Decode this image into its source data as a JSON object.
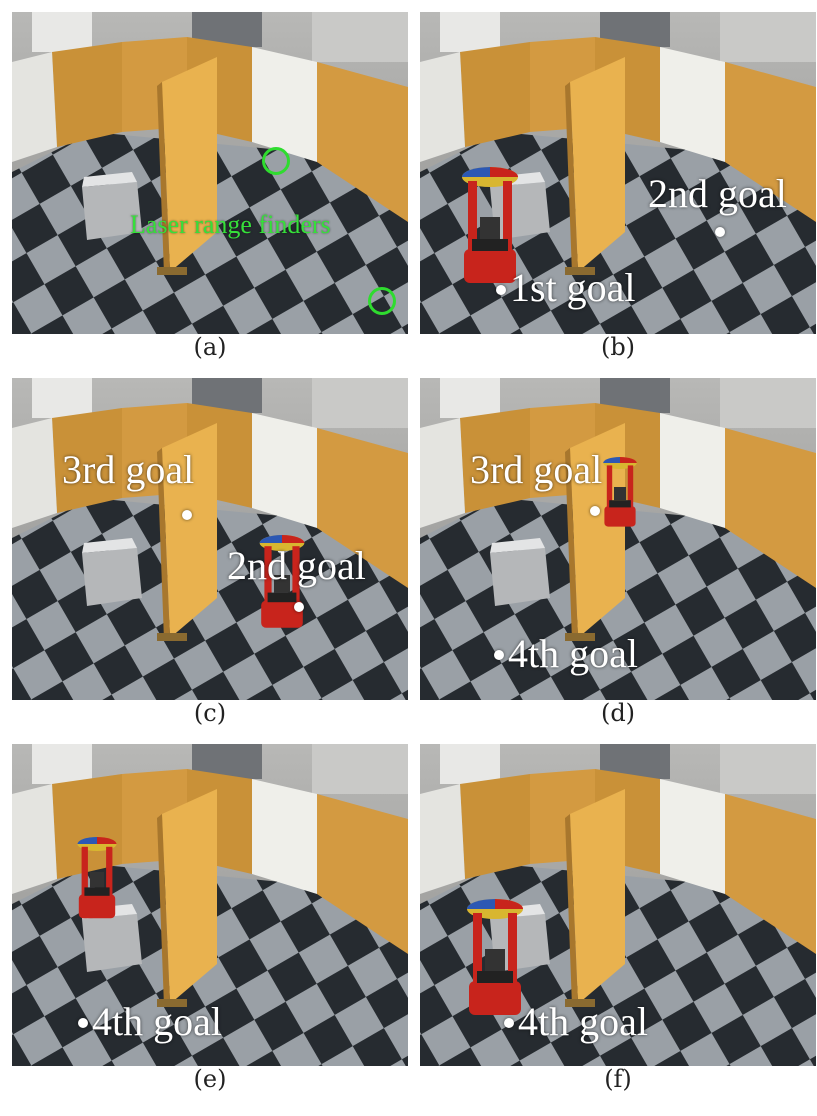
{
  "panels": [
    {
      "label": "(a)",
      "annotations": [
        "Laser range finders"
      ]
    },
    {
      "label": "(b)",
      "annotations": [
        "2nd goal",
        "1st goal"
      ]
    },
    {
      "label": "(c)",
      "annotations": [
        "3rd goal",
        "2nd goal"
      ]
    },
    {
      "label": "(d)",
      "annotations": [
        "3rd goal",
        "4th goal"
      ]
    },
    {
      "label": "(e)",
      "annotations": [
        "4th goal"
      ]
    },
    {
      "label": "(f)",
      "annotations": [
        "4th goal"
      ]
    }
  ],
  "colors": {
    "annotation_text": "#ffffff",
    "laser_label": "#36e03a",
    "robot_red": "#c8241c",
    "panel_wood": "#d9a24a",
    "floor_dark": "#262b30",
    "floor_light": "#9aa0a6"
  },
  "icon_names": [
    "laser-marker-ring",
    "goal-dot"
  ]
}
